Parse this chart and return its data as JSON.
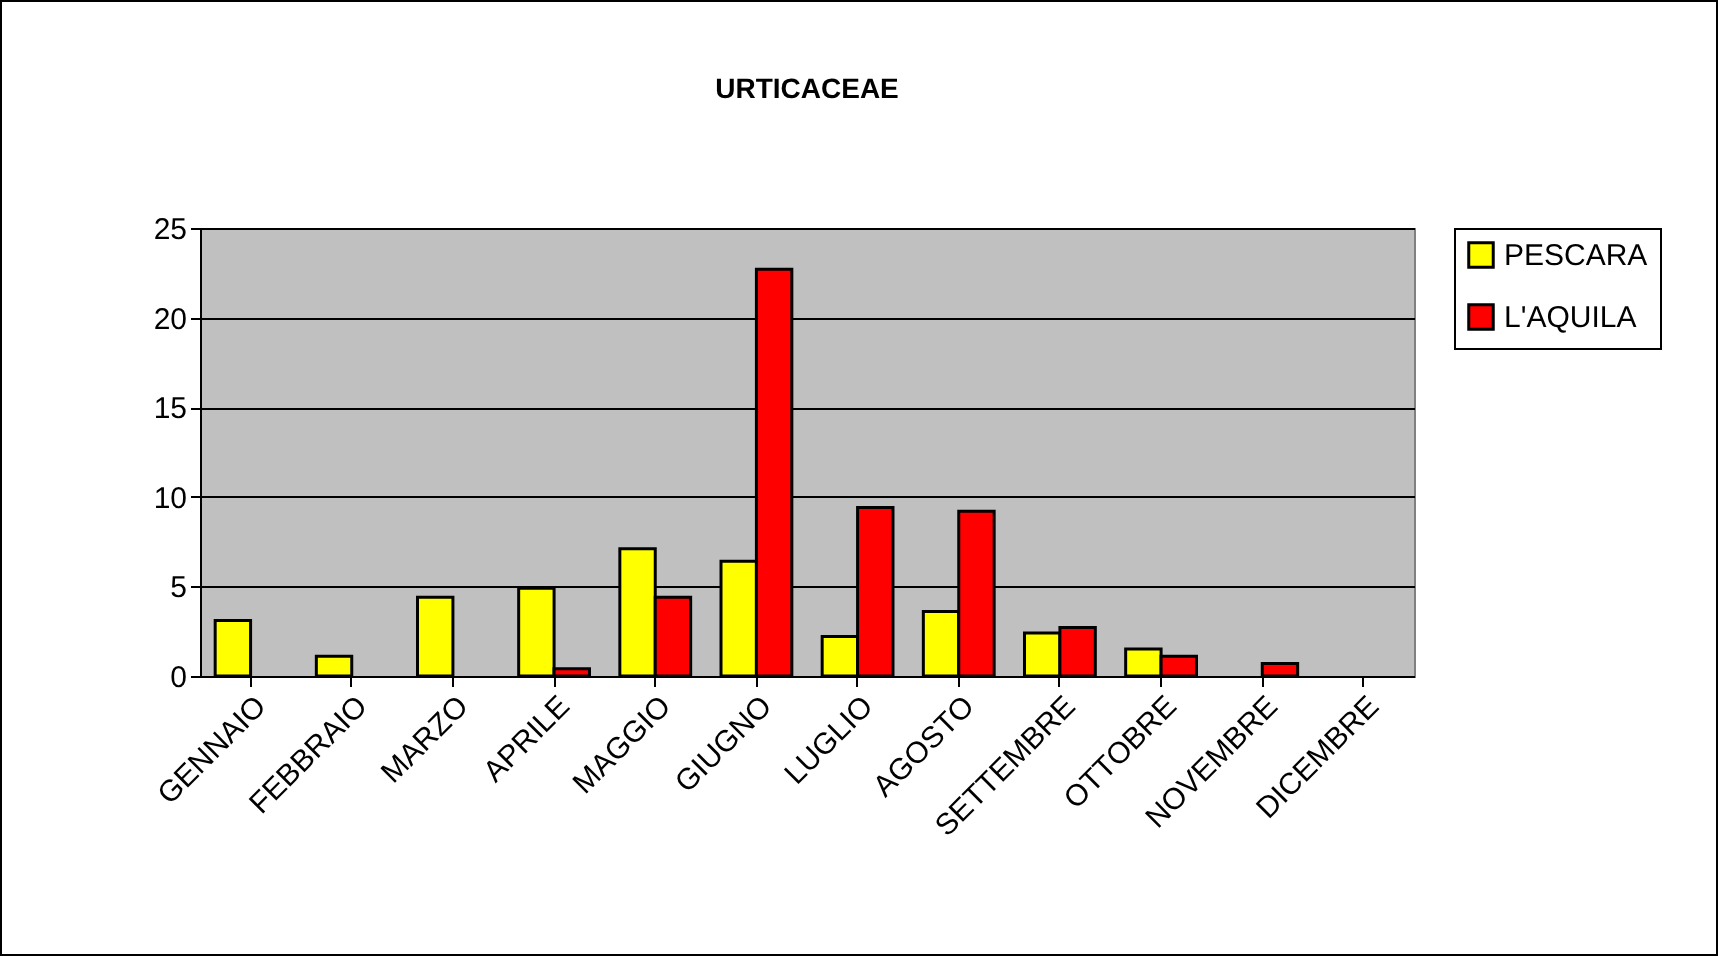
{
  "chart_data": {
    "type": "bar",
    "title": "URTICACEAE",
    "categories": [
      "GENNAIO",
      "FEBBRAIO",
      "MARZO",
      "APRILE",
      "MAGGIO",
      "GIUGNO",
      "LUGLIO",
      "AGOSTO",
      "SETTEMBRE",
      "OTTOBRE",
      "NOVEMBRE",
      "DICEMBRE"
    ],
    "series": [
      {
        "name": "PESCARA",
        "color": "#ffff00",
        "values": [
          3.1,
          1.1,
          4.4,
          4.9,
          7.1,
          6.4,
          2.2,
          3.6,
          2.4,
          1.5,
          null,
          null
        ]
      },
      {
        "name": "L'AQUILA",
        "color": "#ff0000",
        "values": [
          null,
          null,
          null,
          0.4,
          4.4,
          22.7,
          9.4,
          9.2,
          2.7,
          1.1,
          0.7,
          null
        ]
      }
    ],
    "ylim": [
      0,
      25
    ],
    "yticks": [
      0,
      5,
      10,
      15,
      20,
      25
    ],
    "grid": "y",
    "legend": "right"
  }
}
